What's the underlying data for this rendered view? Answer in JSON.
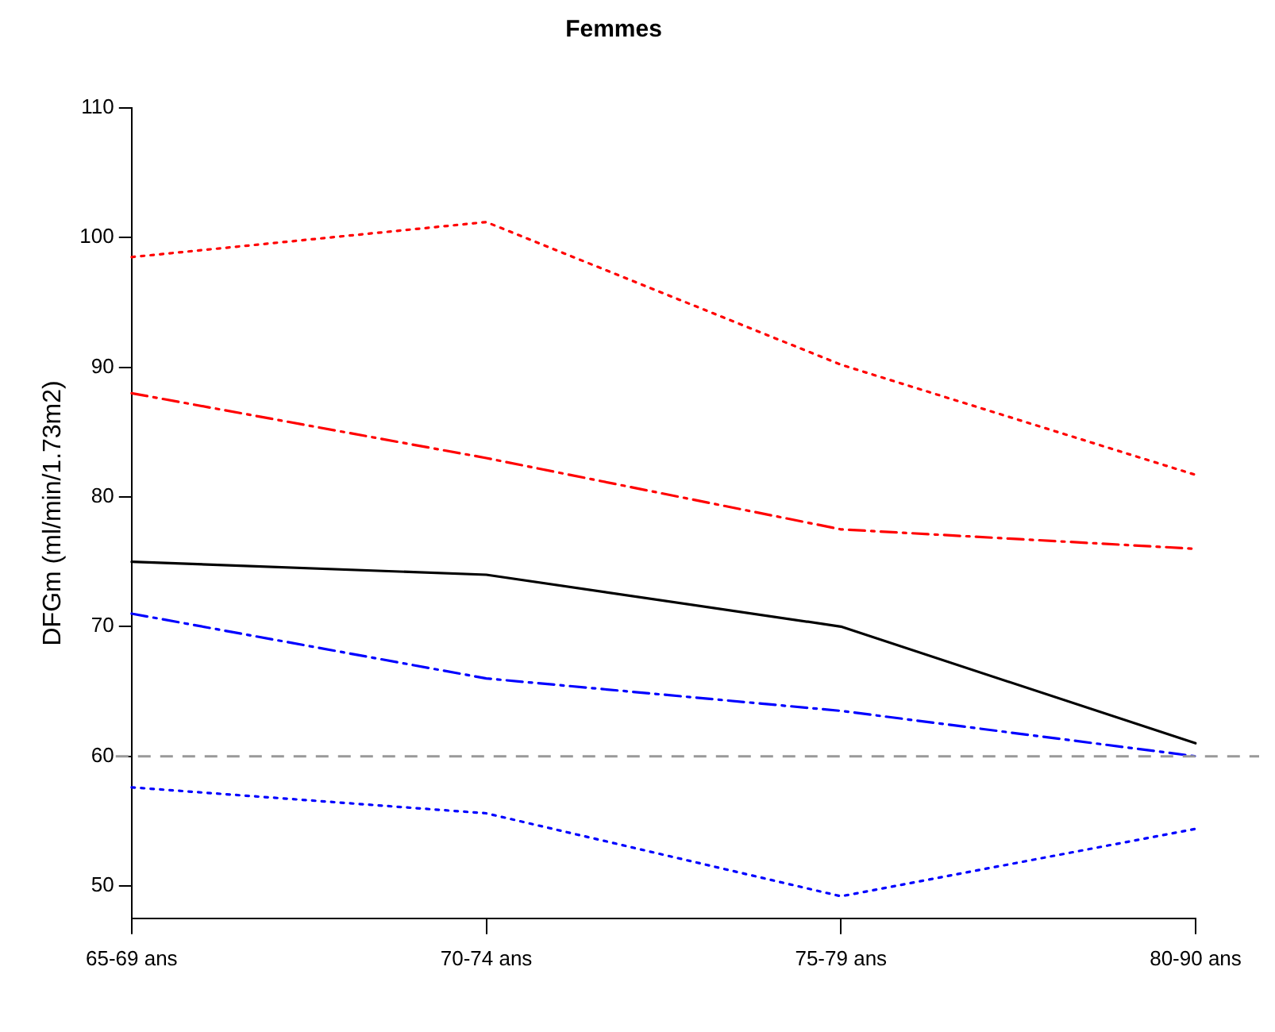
{
  "chart_data": {
    "type": "line",
    "title": "Femmes",
    "ylabel": "DFGm (ml/min/1.73m2)",
    "categories": [
      "65-69 ans",
      "70-74 ans",
      "75-79 ans",
      "80-90 ans"
    ],
    "series": [
      {
        "color": "#ff0000",
        "line_style": "dotted",
        "values": [
          98.5,
          101.2,
          90.2,
          81.7
        ]
      },
      {
        "color": "#ff0000",
        "line_style": "dashdot",
        "values": [
          88,
          83,
          77.5,
          76
        ]
      },
      {
        "color": "#000000",
        "line_style": "solid",
        "values": [
          75,
          74,
          70,
          61
        ]
      },
      {
        "color": "#0000ff",
        "line_style": "dashdot",
        "values": [
          71,
          66,
          63.5,
          60
        ]
      },
      {
        "color": "#0000ff",
        "line_style": "dotted",
        "values": [
          57.6,
          55.6,
          49.2,
          54.4
        ]
      }
    ],
    "ylim": [
      47.5,
      110
    ],
    "yticks": [
      50,
      60,
      70,
      80,
      90,
      100,
      110
    ],
    "ref_lines": [
      {
        "axis": "y",
        "value": 60,
        "color": "#999999",
        "line_style": "dashed"
      }
    ],
    "grid": false,
    "legend": false,
    "marker": "none"
  }
}
